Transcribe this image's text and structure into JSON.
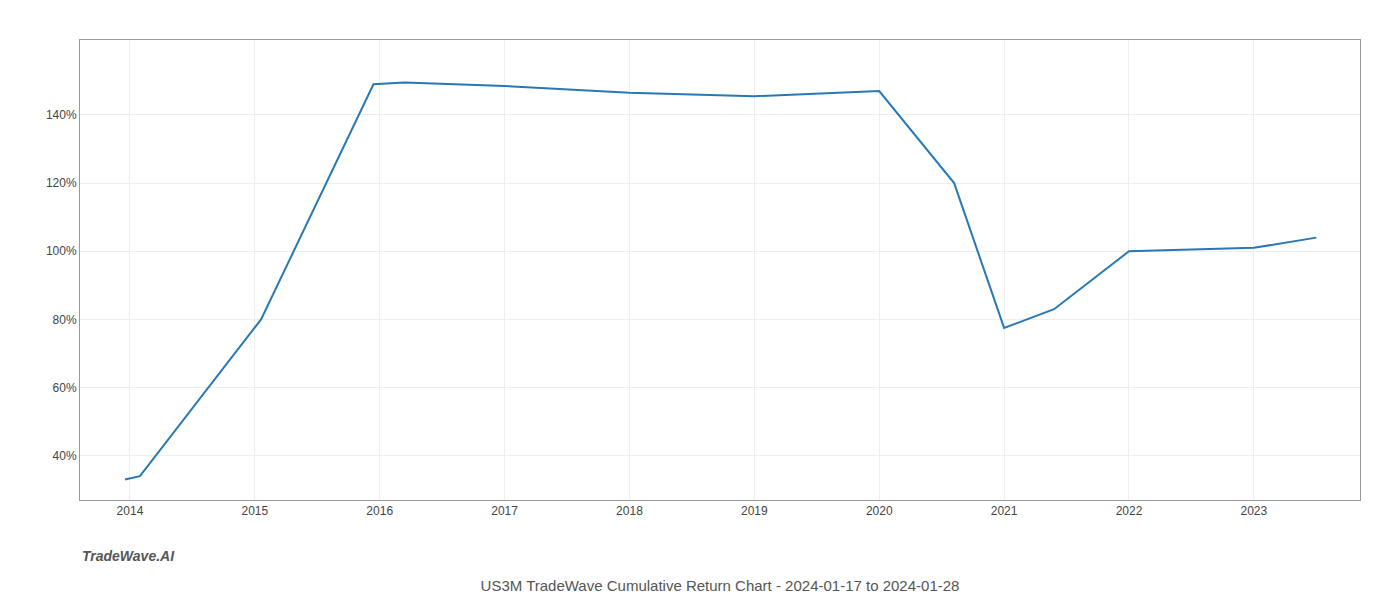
{
  "chart_data": {
    "type": "line",
    "title": "US3M TradeWave Cumulative Return Chart - 2024-01-17 to 2024-01-28",
    "annotations": [
      {
        "text": "TradeWave.AI"
      }
    ],
    "x": [
      2013.96,
      2014.08,
      2015.05,
      2015.95,
      2016.2,
      2017.0,
      2018.0,
      2018.5,
      2019.0,
      2020.0,
      2020.6,
      2021.0,
      2021.4,
      2022.0,
      2023.0,
      2023.5
    ],
    "values": [
      0.33,
      0.34,
      0.8,
      1.49,
      1.495,
      1.485,
      1.465,
      1.46,
      1.455,
      1.47,
      1.2,
      0.775,
      0.83,
      1.0,
      1.01,
      1.04
    ],
    "color": "#2878b5",
    "xlim": [
      2013.6,
      2023.85
    ],
    "ylim": [
      0.27,
      1.62
    ],
    "xticks": [
      2014,
      2015,
      2016,
      2017,
      2018,
      2019,
      2020,
      2021,
      2022,
      2023
    ],
    "yticks": [
      {
        "value": 0.4,
        "label": "40%"
      },
      {
        "value": 0.6,
        "label": "60%"
      },
      {
        "value": 0.8,
        "label": "80%"
      },
      {
        "value": 1.0,
        "label": "100%"
      },
      {
        "value": 1.2,
        "label": "120%"
      },
      {
        "value": 1.4,
        "label": "140%"
      }
    ],
    "grid": true
  }
}
